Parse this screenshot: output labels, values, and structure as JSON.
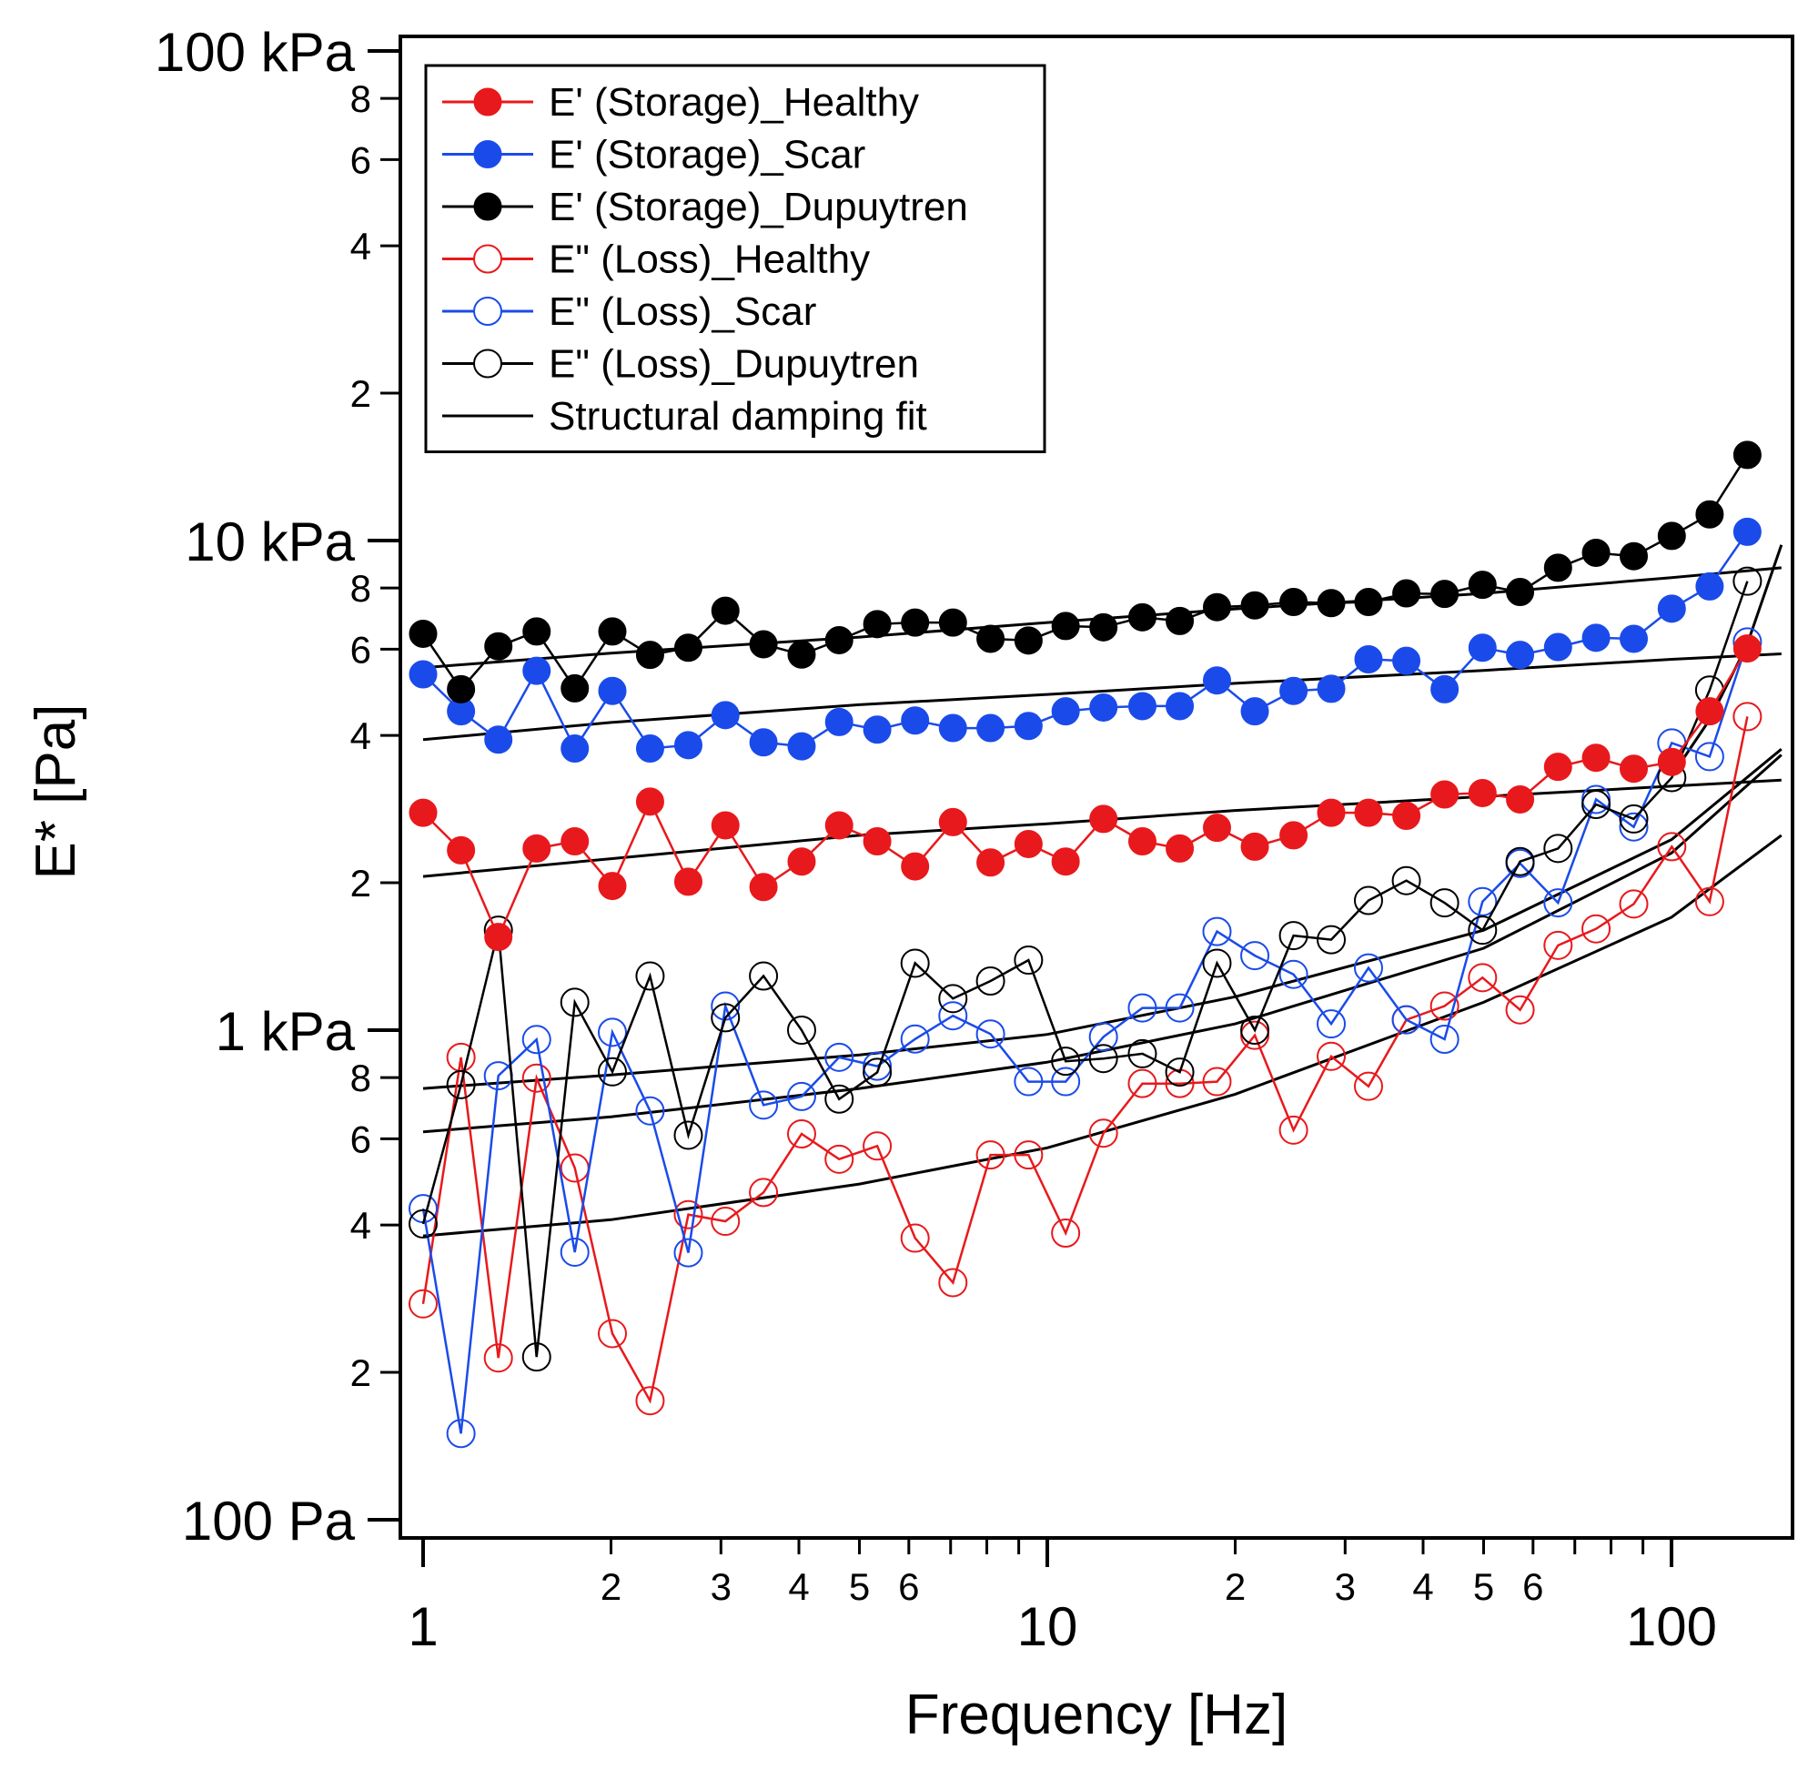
{
  "chart_data": {
    "type": "line",
    "title": "",
    "xlabel": "Frequency [Hz]",
    "ylabel": "E* [Pa]",
    "xscale": "log",
    "yscale": "log",
    "xlim": [
      0.97,
      200
    ],
    "ylim": [
      90,
      120000
    ],
    "x_major_ticks": [
      {
        "value": 1,
        "label": "1"
      },
      {
        "value": 10,
        "label": "10"
      },
      {
        "value": 100,
        "label": "100"
      }
    ],
    "x_minor_ticks": [
      {
        "value": 2,
        "label": "2"
      },
      {
        "value": 3,
        "label": "3"
      },
      {
        "value": 4,
        "label": "4"
      },
      {
        "value": 5,
        "label": "5"
      },
      {
        "value": 6,
        "label": "6"
      },
      {
        "value": 7,
        "label": ""
      },
      {
        "value": 8,
        "label": ""
      },
      {
        "value": 9,
        "label": ""
      },
      {
        "value": 20,
        "label": "2"
      },
      {
        "value": 30,
        "label": "3"
      },
      {
        "value": 40,
        "label": "4"
      },
      {
        "value": 50,
        "label": "5"
      },
      {
        "value": 60,
        "label": "6"
      },
      {
        "value": 70,
        "label": ""
      },
      {
        "value": 80,
        "label": ""
      },
      {
        "value": 90,
        "label": ""
      }
    ],
    "y_major_ticks": [
      {
        "value": 100,
        "label": "100 Pa"
      },
      {
        "value": 1000,
        "label": "1 kPa"
      },
      {
        "value": 10000,
        "label": "10 kPa"
      },
      {
        "value": 100000,
        "label": "100 kPa"
      }
    ],
    "y_minor_ticks": [
      {
        "value": 200,
        "label": "2"
      },
      {
        "value": 400,
        "label": "4"
      },
      {
        "value": 600,
        "label": "6"
      },
      {
        "value": 800,
        "label": "8"
      },
      {
        "value": 2000,
        "label": "2"
      },
      {
        "value": 4000,
        "label": "4"
      },
      {
        "value": 6000,
        "label": "6"
      },
      {
        "value": 8000,
        "label": "8"
      },
      {
        "value": 20000,
        "label": "2"
      },
      {
        "value": 40000,
        "label": "4"
      },
      {
        "value": 60000,
        "label": "6"
      },
      {
        "value": 80000,
        "label": "8"
      }
    ],
    "x": [
      1.0,
      1.15,
      1.32,
      1.52,
      1.75,
      2.01,
      2.31,
      2.66,
      3.05,
      3.51,
      4.04,
      4.64,
      5.34,
      6.14,
      7.06,
      8.11,
      9.33,
      10.7,
      12.3,
      14.2,
      16.3,
      18.7,
      21.5,
      24.8,
      28.5,
      32.7,
      37.6,
      43.3,
      49.8,
      57.2,
      65.8,
      75.7,
      87.0,
      100.1,
      115.1,
      132.3
    ],
    "series": [
      {
        "name": "E' (Storage)_Healthy",
        "color": "#e8191c",
        "marker": "filled",
        "values": [
          2780,
          2330,
          1550,
          2350,
          2430,
          1970,
          2930,
          2010,
          2620,
          1960,
          2210,
          2620,
          2430,
          2160,
          2660,
          2200,
          2400,
          2210,
          2700,
          2430,
          2350,
          2590,
          2370,
          2500,
          2780,
          2780,
          2740,
          3030,
          3050,
          2960,
          3450,
          3600,
          3420,
          3530,
          4480,
          6020
        ]
      },
      {
        "name": "E' (Storage)_Scar",
        "color": "#1a4bea",
        "marker": "filled",
        "values": [
          5330,
          4480,
          3920,
          5420,
          3760,
          4930,
          3760,
          3820,
          4400,
          3870,
          3800,
          4260,
          4110,
          4290,
          4140,
          4140,
          4180,
          4480,
          4560,
          4590,
          4590,
          5180,
          4480,
          4930,
          4980,
          5720,
          5680,
          4970,
          6040,
          5840,
          6060,
          6330,
          6300,
          7260,
          8060,
          10420
        ]
      },
      {
        "name": "E' (Storage)_Dupuytren",
        "color": "#000000",
        "marker": "filled",
        "values": [
          6450,
          4970,
          6080,
          6520,
          4990,
          6520,
          5840,
          6040,
          7190,
          6140,
          5850,
          6260,
          6750,
          6800,
          6800,
          6300,
          6250,
          6690,
          6650,
          6970,
          6850,
          7310,
          7370,
          7490,
          7450,
          7490,
          7800,
          7780,
          8120,
          7850,
          8800,
          9440,
          9290,
          10220,
          11310,
          14960
        ]
      },
      {
        "name": "E'' (Loss)_Healthy",
        "color": "#e8191c",
        "marker": "open",
        "values": [
          276,
          880,
          214,
          798,
          523,
          240,
          175,
          420,
          407,
          466,
          614,
          545,
          580,
          376,
          305,
          556,
          556,
          385,
          616,
          778,
          778,
          785,
          976,
          625,
          884,
          768,
          1050,
          1120,
          1280,
          1100,
          1490,
          1610,
          1810,
          2370,
          1830,
          4370
        ]
      },
      {
        "name": "E'' (Loss)_Scar",
        "color": "#1a4bea",
        "marker": "open",
        "values": [
          432,
          150,
          807,
          957,
          352,
          990,
          684,
          351,
          1120,
          703,
          732,
          880,
          844,
          959,
          1070,
          982,
          785,
          785,
          969,
          1110,
          1110,
          1590,
          1420,
          1300,
          1030,
          1340,
          1050,
          958,
          1830,
          2190,
          1820,
          2960,
          2600,
          3860,
          3620,
          6210
        ]
      },
      {
        "name": "E'' (Loss)_Dupuytren",
        "color": "#000000",
        "marker": "open",
        "values": [
          402,
          774,
          1600,
          215,
          1140,
          822,
          1290,
          610,
          1060,
          1290,
          1000,
          723,
          820,
          1370,
          1160,
          1260,
          1390,
          864,
          875,
          895,
          821,
          1370,
          1000,
          1560,
          1530,
          1840,
          2020,
          1820,
          1600,
          2210,
          2350,
          2890,
          2700,
          3280,
          4950,
          8260
        ]
      },
      {
        "name": "Structural damping fit",
        "color": "#000000",
        "marker": "none",
        "fits": [
          {
            "x": [
              1,
              2,
              5,
              10,
              20,
              50,
              100,
              150
            ],
            "values": [
              2060,
              2240,
              2500,
              2640,
              2810,
              3000,
              3150,
              3240
            ]
          },
          {
            "x": [
              1,
              2,
              5,
              10,
              20,
              50,
              100,
              150
            ],
            "values": [
              3920,
              4250,
              4620,
              4850,
              5110,
              5430,
              5720,
              5870
            ]
          },
          {
            "x": [
              1,
              2,
              5,
              10,
              20,
              50,
              100,
              150
            ],
            "values": [
              5500,
              5890,
              6350,
              6800,
              7250,
              7800,
              8400,
              8800
            ]
          },
          {
            "x": [
              1,
              2,
              5,
              10,
              20,
              50,
              100,
              150
            ],
            "values": [
              380,
              410,
              485,
              575,
              740,
              1140,
              1700,
              2500
            ]
          },
          {
            "x": [
              1,
              2,
              5,
              10,
              20,
              50,
              100,
              150
            ],
            "values": [
              620,
              665,
              760,
              860,
              1030,
              1470,
              2300,
              3650
            ]
          },
          {
            "x": [
              1,
              2,
              5,
              10,
              20,
              50,
              100,
              150
            ],
            "values": [
              760,
              810,
              890,
              980,
              1170,
              1600,
              2450,
              3750
            ]
          },
          {
            "x": [
              100,
              115,
              132,
              150
            ],
            "values": [
              3300,
              4300,
              6100,
              9800
            ]
          }
        ]
      }
    ],
    "legend": {
      "position": "top-left",
      "entries": [
        {
          "label": "E' (Storage)_Healthy",
          "color": "#e8191c",
          "marker": "filled"
        },
        {
          "label": "E' (Storage)_Scar",
          "color": "#1a4bea",
          "marker": "filled"
        },
        {
          "label": "E' (Storage)_Dupuytren",
          "color": "#000000",
          "marker": "filled"
        },
        {
          "label": "E\" (Loss)_Healthy",
          "color": "#e8191c",
          "marker": "open"
        },
        {
          "label": "E\" (Loss)_Scar",
          "color": "#1a4bea",
          "marker": "open"
        },
        {
          "label": "E\" (Loss)_Dupuytren",
          "color": "#000000",
          "marker": "open"
        },
        {
          "label": "Structural damping fit",
          "color": "#000000",
          "marker": "none"
        }
      ]
    },
    "grid": false
  }
}
